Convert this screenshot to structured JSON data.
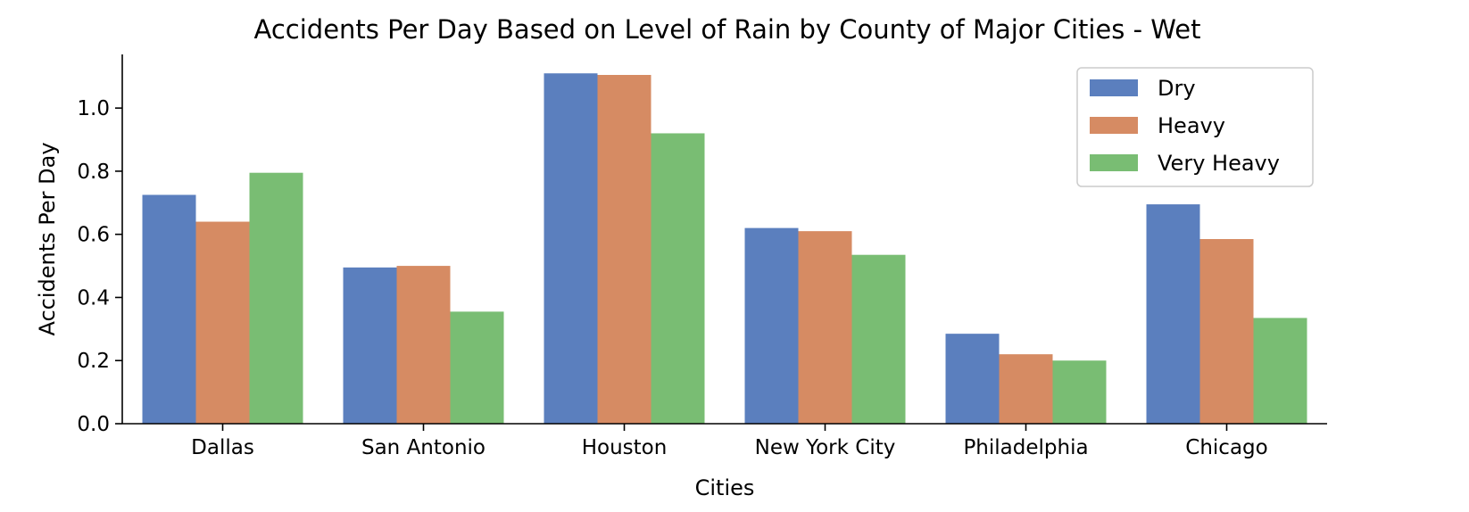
{
  "chart_data": {
    "type": "bar",
    "title": "Accidents Per Day Based on Level of Rain by County of Major Cities - Wet",
    "xlabel": "Cities",
    "ylabel": "Accidents Per Day",
    "categories": [
      "Dallas",
      "San Antonio",
      "Houston",
      "New York City",
      "Philadelphia",
      "Chicago"
    ],
    "series": [
      {
        "name": "Dry",
        "color": "#5b7fbe",
        "values": [
          0.725,
          0.495,
          1.11,
          0.62,
          0.285,
          0.695
        ]
      },
      {
        "name": "Heavy",
        "color": "#d68b63",
        "values": [
          0.64,
          0.5,
          1.105,
          0.61,
          0.22,
          0.585
        ]
      },
      {
        "name": "Very Heavy",
        "color": "#79bd73",
        "values": [
          0.795,
          0.355,
          0.92,
          0.535,
          0.2,
          0.335
        ]
      }
    ],
    "ylim": [
      0,
      1.17
    ],
    "yticks": [
      0.0,
      0.2,
      0.4,
      0.6,
      0.8,
      1.0
    ],
    "ytick_labels": [
      "0.0",
      "0.2",
      "0.4",
      "0.6",
      "0.8",
      "1.0"
    ],
    "grid": false,
    "legend_position": "top-right"
  }
}
